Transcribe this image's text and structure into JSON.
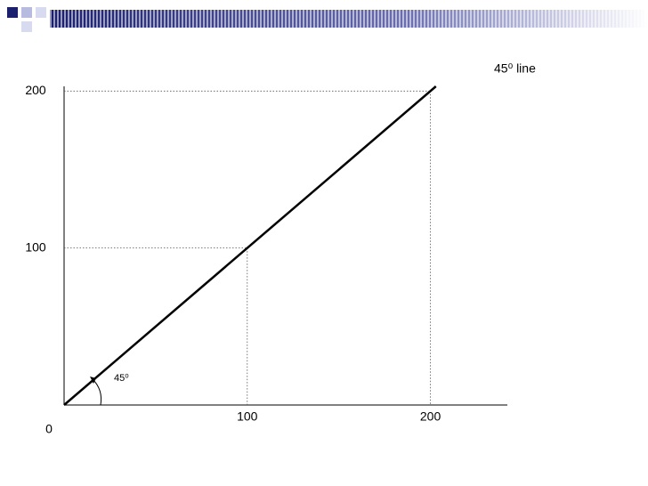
{
  "chart_data": {
    "type": "line",
    "x": [
      0,
      203
    ],
    "values": [
      0,
      203
    ],
    "color": "#000000",
    "xlim": [
      0,
      242
    ],
    "ylim": [
      0,
      203
    ],
    "xticks": [
      100,
      200
    ],
    "yticks": [
      100,
      200
    ],
    "origin_tick": 0,
    "line_label": "45⁰ line",
    "angle_label": "45⁰",
    "guides": true
  }
}
